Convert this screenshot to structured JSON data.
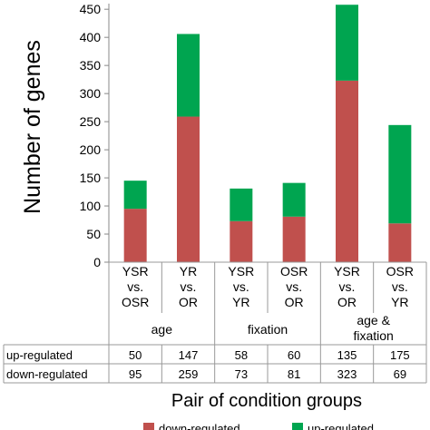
{
  "chart_data": {
    "type": "bar",
    "stacked": true,
    "ylabel": "Number of genes",
    "xlabel": "Pair of condition groups",
    "ylim": [
      0,
      460
    ],
    "yticks": [
      0,
      50,
      100,
      150,
      200,
      250,
      300,
      350,
      400,
      450
    ],
    "categories": [
      [
        "YSR",
        "vs.",
        "OSR"
      ],
      [
        "YR",
        "vs.",
        "OR"
      ],
      [
        "YSR",
        "vs.",
        "YR"
      ],
      [
        "OSR",
        "vs.",
        "OR"
      ],
      [
        "YSR",
        "vs.",
        "OR"
      ],
      [
        "OSR",
        "vs.",
        "YR"
      ]
    ],
    "groups": [
      {
        "label": [
          "age"
        ],
        "span": 2
      },
      {
        "label": [
          "fixation"
        ],
        "span": 2
      },
      {
        "label": [
          "age &",
          "fixation"
        ],
        "span": 2
      }
    ],
    "series": [
      {
        "name": "down-regulated",
        "color": "#c0504d",
        "values": [
          95,
          259,
          73,
          81,
          323,
          69
        ]
      },
      {
        "name": "up-regulated",
        "color": "#00a550",
        "values": [
          50,
          147,
          58,
          60,
          135,
          175
        ]
      }
    ],
    "table_rows": [
      {
        "label": "up-regulated",
        "series": 1
      },
      {
        "label": "down-regulated",
        "series": 0
      }
    ],
    "legend_position": "bottom"
  }
}
